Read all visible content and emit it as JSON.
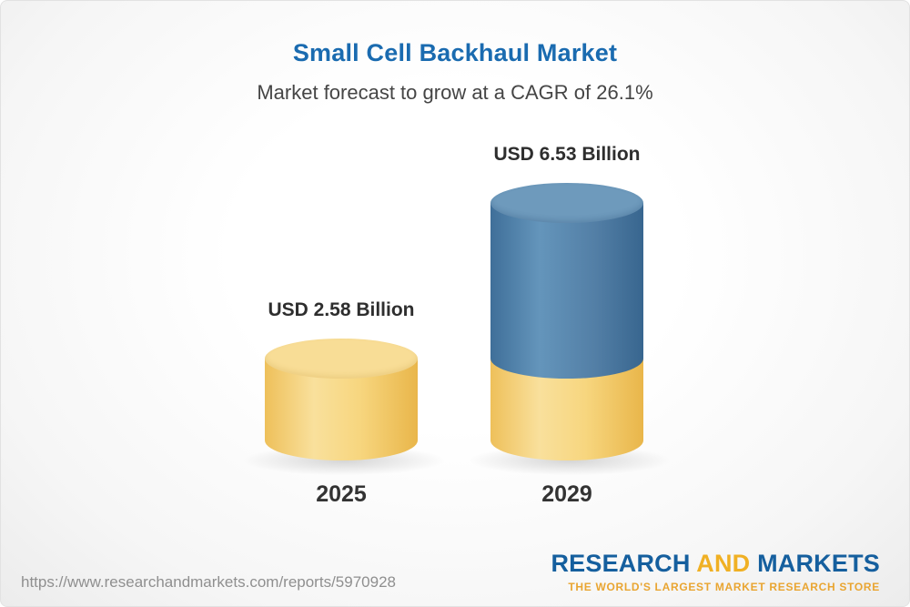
{
  "chart_data": {
    "type": "bar",
    "variant": "3d-cylinder",
    "title": "Small Cell Backhaul Market",
    "subtitle": "Market forecast to grow at a CAGR of 26.1%",
    "cagr_percent": 26.1,
    "categories": [
      "2025",
      "2029"
    ],
    "values": [
      2.58,
      6.53
    ],
    "unit": "USD Billion",
    "data_labels": [
      "USD 2.58 Billion",
      "USD 6.53 Billion"
    ],
    "ylim": [
      0,
      7
    ],
    "gridlines": false,
    "legend": false,
    "colors": {
      "bar_2025": "#f6cf6f",
      "bar_2029_top": "#4e81aa",
      "bar_2029_base": "#f6cf6f",
      "title": "#1a6bb0"
    }
  },
  "footer": {
    "url": "https://www.researchandmarkets.com/reports/5970928",
    "logo": {
      "word1": "RESEARCH",
      "word2": "AND",
      "word3": "MARKETS",
      "tagline": "THE WORLD'S LARGEST MARKET RESEARCH STORE"
    }
  }
}
